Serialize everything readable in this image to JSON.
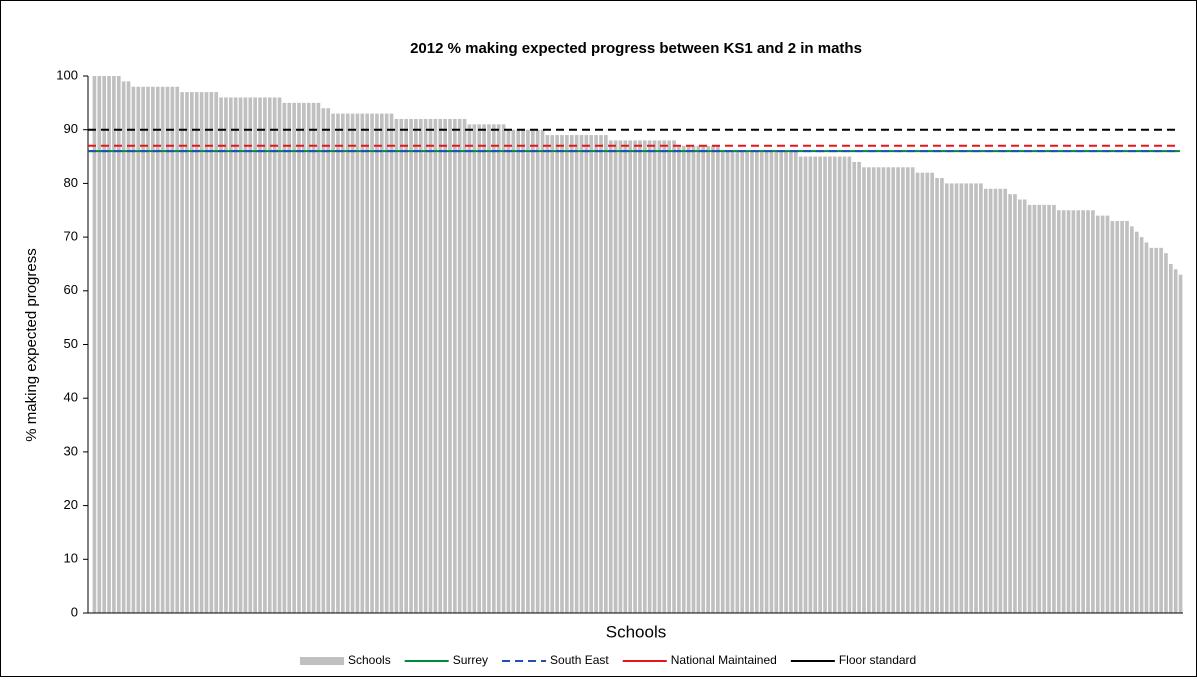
{
  "chart_data": {
    "type": "bar",
    "title": "2012 % making expected progress between KS1 and 2 in maths",
    "x_label": "Schools",
    "y_label": "% making expected progress",
    "ylim": [
      0,
      100
    ],
    "yticks": [
      0,
      10,
      20,
      30,
      40,
      50,
      60,
      70,
      80,
      90,
      100
    ],
    "series": [
      {
        "name": "Schools",
        "color": "#c0c0c0",
        "values": [
          100,
          100,
          100,
          100,
          100,
          100,
          99,
          99,
          98,
          98,
          98,
          98,
          98,
          98,
          98,
          98,
          98,
          98,
          97,
          97,
          97,
          97,
          97,
          97,
          97,
          97,
          96,
          96,
          96,
          96,
          96,
          96,
          96,
          96,
          96,
          96,
          96,
          96,
          96,
          95,
          95,
          95,
          95,
          95,
          95,
          95,
          95,
          94,
          94,
          93,
          93,
          93,
          93,
          93,
          93,
          93,
          93,
          93,
          93,
          93,
          93,
          93,
          92,
          92,
          92,
          92,
          92,
          92,
          92,
          92,
          92,
          92,
          92,
          92,
          92,
          92,
          92,
          91,
          91,
          91,
          91,
          91,
          91,
          91,
          91,
          90,
          90,
          90,
          90,
          90,
          90,
          90,
          90,
          89,
          89,
          89,
          89,
          89,
          89,
          89,
          89,
          89,
          89,
          89,
          89,
          89,
          88,
          88,
          88,
          88,
          88,
          88,
          88,
          88,
          88,
          88,
          88,
          88,
          88,
          88,
          87,
          87,
          87,
          87,
          87,
          87,
          87,
          87,
          87,
          86,
          86,
          86,
          86,
          86,
          86,
          86,
          86,
          86,
          86,
          86,
          86,
          86,
          86,
          86,
          86,
          85,
          85,
          85,
          85,
          85,
          85,
          85,
          85,
          85,
          85,
          85,
          84,
          84,
          83,
          83,
          83,
          83,
          83,
          83,
          83,
          83,
          83,
          83,
          83,
          82,
          82,
          82,
          82,
          81,
          81,
          80,
          80,
          80,
          80,
          80,
          80,
          80,
          80,
          79,
          79,
          79,
          79,
          79,
          78,
          78,
          77,
          77,
          76,
          76,
          76,
          76,
          76,
          76,
          75,
          75,
          75,
          75,
          75,
          75,
          75,
          75,
          74,
          74,
          74,
          73,
          73,
          73,
          73,
          72,
          71,
          70,
          69,
          68,
          68,
          68,
          67,
          65,
          64,
          63
        ]
      }
    ],
    "reference_lines": [
      {
        "name": "Surrey",
        "color": "#008a3e",
        "value": 86,
        "dash": false
      },
      {
        "name": "South East",
        "color": "#1f4fb4",
        "value": 86,
        "dash": true
      },
      {
        "name": "National Maintained",
        "color": "#e8141b",
        "value": 87,
        "dash": true
      },
      {
        "name": "Floor standard",
        "color": "#000000",
        "value": 90,
        "dash": true
      }
    ]
  }
}
